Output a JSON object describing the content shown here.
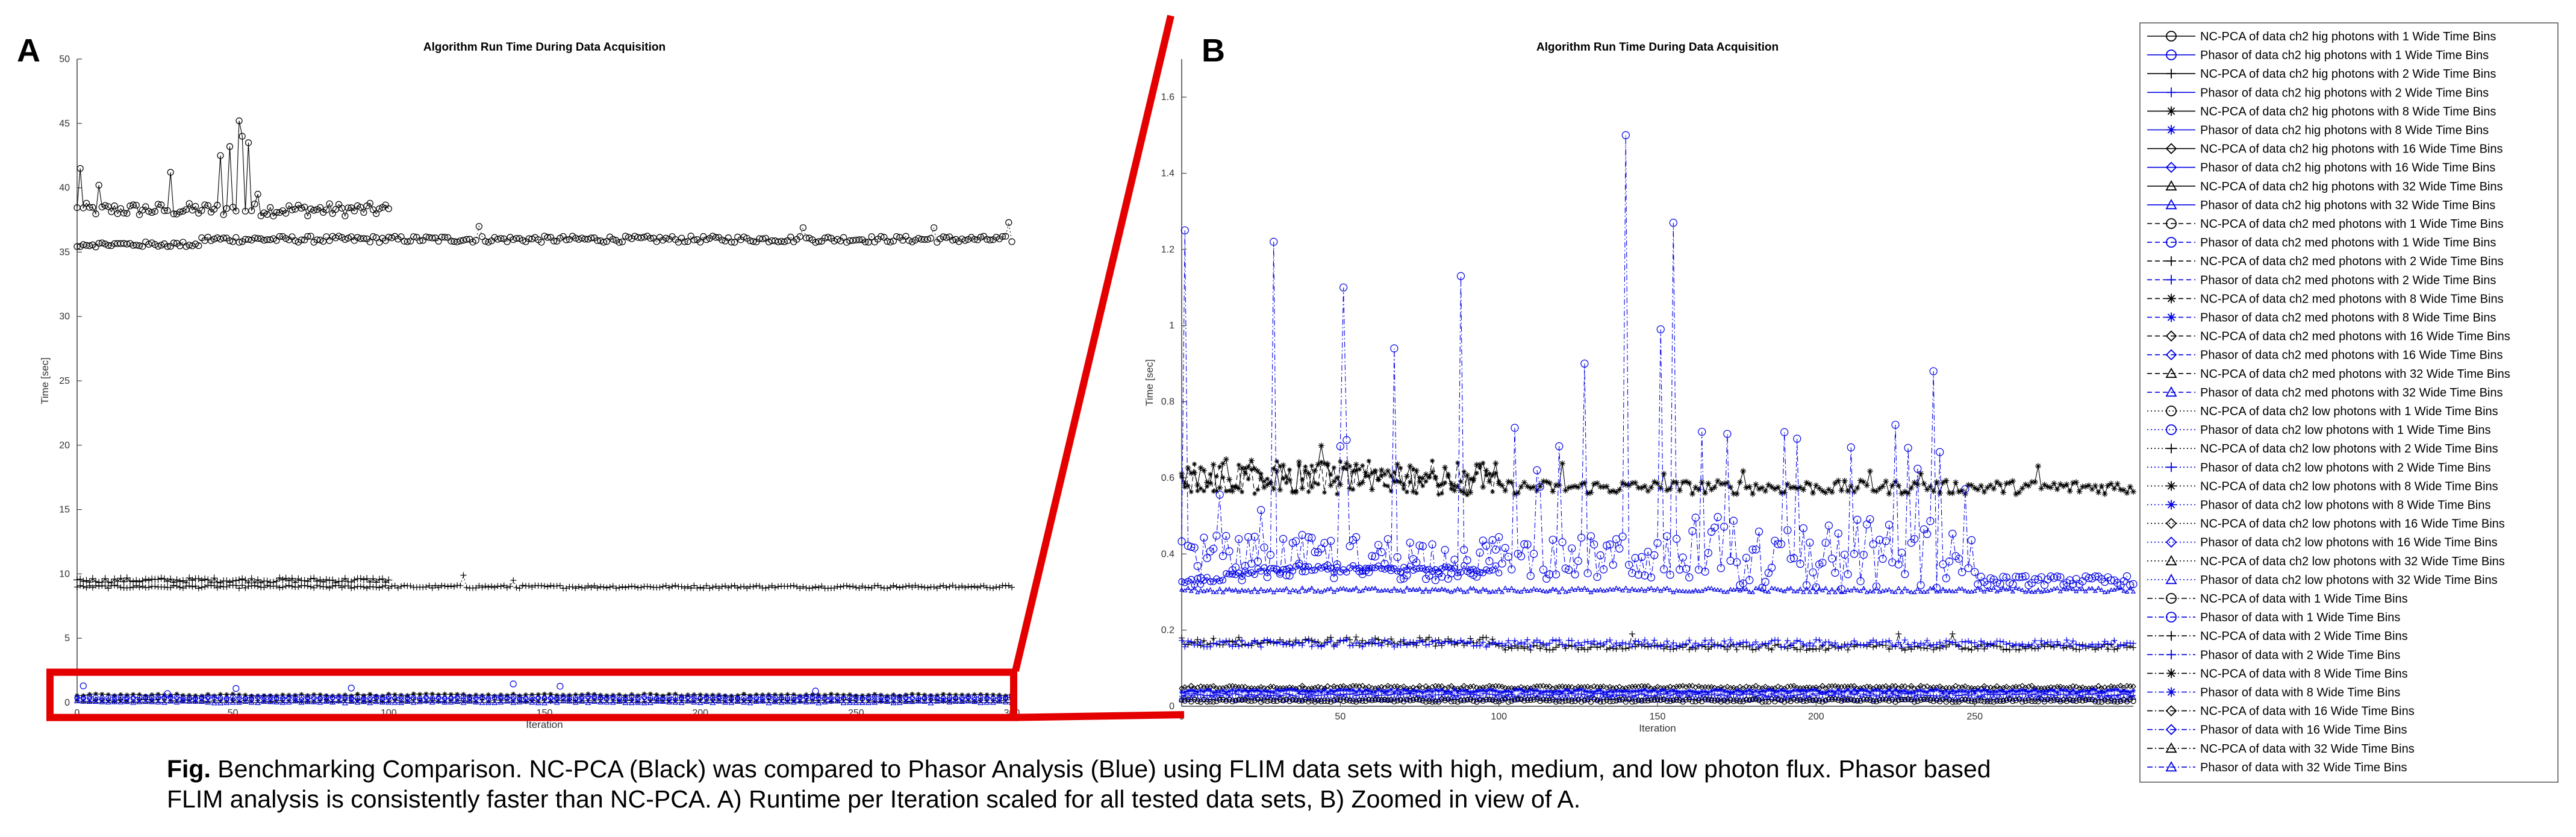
{
  "caption": {
    "label": "Fig.",
    "text": " Benchmarking Comparison. NC-PCA (Black) was compared to Phasor Analysis (Blue) using FLIM data sets with high, medium, and low photon flux. Phasor based FLIM analysis is consistently faster than NC-PCA. A) Runtime per Iteration scaled for all tested data sets, B) Zoomed in view of A."
  },
  "chart_data": [
    {
      "panel": "A",
      "type": "line",
      "title": "Algorithm Run Time During Data Acquisition",
      "xlabel": "Iteration",
      "ylabel": "Time [sec]",
      "xlim": [
        0,
        300
      ],
      "ylim": [
        0,
        50
      ],
      "xticks": [
        0,
        50,
        100,
        150,
        200,
        250,
        300
      ],
      "yticks": [
        0,
        5,
        10,
        15,
        20,
        25,
        30,
        35,
        40,
        45,
        50
      ],
      "grid": false,
      "series_summary": [
        {
          "name": "NC-PCA of data ch2 hig photons with 1 Wide Time Bins",
          "x_range": [
            0,
            100
          ],
          "approx_level": 38.3,
          "peak": 45.2
        },
        {
          "name": "NC-PCA of data ch2 hig photons with 1 Wide Time Bins (continuation)",
          "x_range": [
            0,
            300
          ],
          "approx_level": 36.0
        },
        {
          "name": "NC-PCA of data ch2 hig photons with 2 Wide Time Bins",
          "x_range": [
            0,
            300
          ],
          "approx_level": 9.1
        },
        {
          "name": "Remaining series (NC-PCA and Phasor, hig/med/low photons)",
          "x_range": [
            0,
            300
          ],
          "approx_level": 0.4
        }
      ],
      "highlight_box": {
        "x": [
          0,
          300
        ],
        "y": [
          -0.5,
          1.8
        ],
        "color": "#e50000"
      }
    },
    {
      "panel": "B",
      "type": "line",
      "title": "Algorithm Run Time During Data Acquisition",
      "xlabel": "Iteration",
      "ylabel": "Time [sec]",
      "xlim": [
        0,
        300
      ],
      "ylim": [
        0,
        1.7
      ],
      "xticks": [
        0,
        50,
        100,
        150,
        200,
        250
      ],
      "yticks": [
        0,
        0.2,
        0.4,
        0.6,
        0.8,
        1,
        1.2,
        1.4,
        1.6
      ],
      "grid": false,
      "series_summary": [
        {
          "name": "NC-PCA of data ch2 hig photons with 8 Wide Time Bins",
          "x_range": [
            0,
            300
          ],
          "approx_level": 0.58
        },
        {
          "name": "Phasor of data ch2 low photons with 16 Wide Time Bins",
          "x_range": [
            0,
            300
          ],
          "approx_level": 0.4,
          "spikes": [
            [
              1,
              1.25
            ],
            [
              29,
              1.22
            ],
            [
              51,
              1.1
            ],
            [
              67,
              0.94
            ],
            [
              88,
              1.13
            ],
            [
              112,
              0.62
            ],
            [
              127,
              0.9
            ],
            [
              140,
              1.5
            ],
            [
              151,
              0.99
            ],
            [
              155,
              1.27
            ],
            [
              190,
              0.72
            ],
            [
              211,
              0.68
            ],
            [
              237,
              0.88
            ],
            [
              247,
              0.57
            ]
          ]
        },
        {
          "name": "Phasor of data ch2 hig photons with 1 Wide Time Bins",
          "x_range": [
            0,
            100
          ],
          "approx_level": 0.36
        },
        {
          "name": "Phasor of data ch2 low photons with 32 Wide Time Bins",
          "x_range": [
            0,
            300
          ],
          "approx_level": 0.31
        },
        {
          "name": "NC-PCA of data ch2 med photons with 2 Wide Time Bins",
          "x_range": [
            0,
            300
          ],
          "approx_level": 0.16
        },
        {
          "name": "Phasor of data with 2 Wide Time Bins",
          "x_range": [
            0,
            300
          ],
          "approx_level": 0.05
        }
      ]
    }
  ],
  "legend": [
    {
      "label": "NC-PCA of data ch2 hig photons with 1 Wide Time Bins",
      "color": "#000000",
      "marker": "circle",
      "style": "solid"
    },
    {
      "label": "Phasor of data ch2 hig photons with 1 Wide Time Bins",
      "color": "#0000e6",
      "marker": "circle",
      "style": "solid"
    },
    {
      "label": "NC-PCA of data ch2 hig photons with 2 Wide Time Bins",
      "color": "#000000",
      "marker": "plus",
      "style": "solid"
    },
    {
      "label": "Phasor of data ch2 hig photons with 2 Wide Time Bins",
      "color": "#0000e6",
      "marker": "plus",
      "style": "solid"
    },
    {
      "label": "NC-PCA of data ch2 hig photons with 8 Wide Time Bins",
      "color": "#000000",
      "marker": "star",
      "style": "solid"
    },
    {
      "label": "Phasor of data ch2 hig photons with 8 Wide Time Bins",
      "color": "#0000e6",
      "marker": "star",
      "style": "solid"
    },
    {
      "label": "NC-PCA of data ch2 hig photons with 16 Wide Time Bins",
      "color": "#000000",
      "marker": "diamond",
      "style": "solid"
    },
    {
      "label": "Phasor of data ch2 hig photons with 16 Wide Time Bins",
      "color": "#0000e6",
      "marker": "diamond",
      "style": "solid"
    },
    {
      "label": "NC-PCA of data ch2 hig photons with 32 Wide Time Bins",
      "color": "#000000",
      "marker": "triangle",
      "style": "solid"
    },
    {
      "label": "Phasor of data ch2 hig photons with 32 Wide Time Bins",
      "color": "#0000e6",
      "marker": "triangle",
      "style": "solid"
    },
    {
      "label": "NC-PCA of data ch2 med photons with 1 Wide Time Bins",
      "color": "#000000",
      "marker": "circle",
      "style": "dashed"
    },
    {
      "label": "Phasor of data ch2 med photons with 1 Wide Time Bins",
      "color": "#0000e6",
      "marker": "circle",
      "style": "dashed"
    },
    {
      "label": "NC-PCA of data ch2 med photons with 2 Wide Time Bins",
      "color": "#000000",
      "marker": "plus",
      "style": "dashed"
    },
    {
      "label": "Phasor of data ch2 med photons with 2 Wide Time Bins",
      "color": "#0000e6",
      "marker": "plus",
      "style": "dashed"
    },
    {
      "label": "NC-PCA of data ch2 med photons with 8 Wide Time Bins",
      "color": "#000000",
      "marker": "star",
      "style": "dashed"
    },
    {
      "label": "Phasor of data ch2 med photons with 8 Wide Time Bins",
      "color": "#0000e6",
      "marker": "star",
      "style": "dashed"
    },
    {
      "label": "NC-PCA of data ch2 med photons with 16 Wide Time Bins",
      "color": "#000000",
      "marker": "diamond",
      "style": "dashed"
    },
    {
      "label": "Phasor of data ch2 med photons with 16 Wide Time Bins",
      "color": "#0000e6",
      "marker": "diamond",
      "style": "dashed"
    },
    {
      "label": "NC-PCA of data ch2 med photons with 32 Wide Time Bins",
      "color": "#000000",
      "marker": "triangle",
      "style": "dashed"
    },
    {
      "label": "Phasor of data ch2 med photons with 32 Wide Time Bins",
      "color": "#0000e6",
      "marker": "triangle",
      "style": "dashed"
    },
    {
      "label": "NC-PCA of data ch2 low photons with 1 Wide Time Bins",
      "color": "#000000",
      "marker": "circle",
      "style": "dotted"
    },
    {
      "label": "Phasor of data ch2 low photons with 1 Wide Time Bins",
      "color": "#0000e6",
      "marker": "circle",
      "style": "dotted"
    },
    {
      "label": "NC-PCA of data ch2 low photons with 2 Wide Time Bins",
      "color": "#000000",
      "marker": "plus",
      "style": "dotted"
    },
    {
      "label": "Phasor of data ch2 low photons with 2 Wide Time Bins",
      "color": "#0000e6",
      "marker": "plus",
      "style": "dotted"
    },
    {
      "label": "NC-PCA of data ch2 low photons with 8 Wide Time Bins",
      "color": "#000000",
      "marker": "star",
      "style": "dotted"
    },
    {
      "label": "Phasor of data ch2 low photons with 8 Wide Time Bins",
      "color": "#0000e6",
      "marker": "star",
      "style": "dotted"
    },
    {
      "label": "NC-PCA of data ch2 low photons with 16 Wide Time Bins",
      "color": "#000000",
      "marker": "diamond",
      "style": "dotted"
    },
    {
      "label": "Phasor of data ch2 low photons with 16 Wide Time Bins",
      "color": "#0000e6",
      "marker": "diamond",
      "style": "dotted"
    },
    {
      "label": "NC-PCA of data ch2 low photons with 32 Wide Time Bins",
      "color": "#000000",
      "marker": "triangle",
      "style": "dotted"
    },
    {
      "label": "Phasor of data ch2 low photons with 32 Wide Time Bins",
      "color": "#0000e6",
      "marker": "triangle",
      "style": "dotted"
    },
    {
      "label": "NC-PCA of data with 1 Wide Time Bins",
      "color": "#000000",
      "marker": "circle",
      "style": "dashdot"
    },
    {
      "label": "Phasor of data with 1 Wide Time Bins",
      "color": "#0000e6",
      "marker": "circle",
      "style": "dashdot"
    },
    {
      "label": "NC-PCA of data with 2 Wide Time Bins",
      "color": "#000000",
      "marker": "plus",
      "style": "dashdot"
    },
    {
      "label": "Phasor of data with 2 Wide Time Bins",
      "color": "#0000e6",
      "marker": "plus",
      "style": "dashdot"
    },
    {
      "label": "NC-PCA of data with 8 Wide Time Bins",
      "color": "#000000",
      "marker": "star",
      "style": "dashdot"
    },
    {
      "label": "Phasor of data with 8 Wide Time Bins",
      "color": "#0000e6",
      "marker": "star",
      "style": "dashdot"
    },
    {
      "label": "NC-PCA of data with 16 Wide Time Bins",
      "color": "#000000",
      "marker": "diamond",
      "style": "dashdot"
    },
    {
      "label": "Phasor of data with 16 Wide Time Bins",
      "color": "#0000e6",
      "marker": "diamond",
      "style": "dashdot"
    },
    {
      "label": "NC-PCA of data with 32 Wide Time Bins",
      "color": "#000000",
      "marker": "triangle",
      "style": "dashdot"
    },
    {
      "label": "Phasor of data with 32 Wide Time Bins",
      "color": "#0000e6",
      "marker": "triangle",
      "style": "dashdot"
    }
  ],
  "panels": {
    "a_label": "A",
    "b_label": "B"
  },
  "colors": {
    "ncpca": "#000000",
    "phasor": "#0000e6",
    "highlight": "#e50000"
  }
}
